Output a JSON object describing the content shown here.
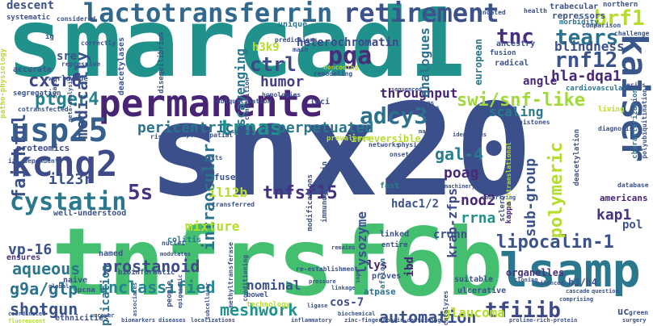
{
  "words": [
    {
      "text": "snx20",
      "color": "#3b4f8a"
    },
    {
      "text": "smarcad1",
      "color": "#21918c"
    },
    {
      "text": "tnfrsf6b",
      "color": "#44bf70"
    },
    {
      "text": "permanente",
      "color": "#482475"
    },
    {
      "text": "lsamp",
      "color": "#2a788e"
    },
    {
      "text": "lactotransferrin",
      "color": "#31688e"
    },
    {
      "text": "retirement",
      "color": "#3b528b"
    },
    {
      "text": "kaiser",
      "color": "#39568c"
    },
    {
      "text": "kcnq2",
      "color": "#3e4a89"
    },
    {
      "text": "usp25",
      "color": "#355f8d"
    },
    {
      "text": "adcy3",
      "color": "#2c728e"
    },
    {
      "text": "cystatin",
      "color": "#2a788e"
    },
    {
      "text": "lipocalin-1",
      "color": "#3b528b"
    },
    {
      "text": "brf1",
      "color": "#b5de2b"
    },
    {
      "text": "swi/snf-like",
      "color": "#a0da39"
    },
    {
      "text": "pga",
      "color": "#472d7b"
    },
    {
      "text": "tears",
      "color": "#2c728e"
    },
    {
      "text": "rnf12",
      "color": "#3b528b"
    },
    {
      "text": "tnc",
      "color": "#472d7b"
    },
    {
      "text": "ctrl",
      "color": "#3e4989"
    },
    {
      "text": "humor",
      "color": "#433e85"
    },
    {
      "text": "ptger4",
      "color": "#26828e"
    },
    {
      "text": "cxcr6",
      "color": "#3f4788"
    },
    {
      "text": "trnas",
      "color": "#21918c"
    },
    {
      "text": "perpetuated",
      "color": "#2a788e"
    },
    {
      "text": "pericentric",
      "color": "#2c728e"
    },
    {
      "text": "faithful",
      "color": "#3b528b"
    },
    {
      "text": "gal-4",
      "color": "#287d8e"
    },
    {
      "text": "poag",
      "color": "#482878"
    },
    {
      "text": "tnfsf15",
      "color": "#46337f"
    },
    {
      "text": "unclassified",
      "color": "#25858e"
    },
    {
      "text": "tfiiib",
      "color": "#3e4989"
    },
    {
      "text": "automation",
      "color": "#3b528b"
    },
    {
      "text": "meshwork",
      "color": "#21918c"
    },
    {
      "text": "shotgun",
      "color": "#3b528b"
    },
    {
      "text": "aqueous",
      "color": "#2a788e"
    },
    {
      "text": "g9a/glp",
      "color": "#2c728e"
    },
    {
      "text": "prostanoid",
      "color": "#3e4a89"
    },
    {
      "text": "vp-16",
      "color": "#3b528b"
    },
    {
      "text": "kap1",
      "color": "#46337f"
    },
    {
      "text": "sub-group",
      "color": "#3b528b"
    },
    {
      "text": "polymeric",
      "color": "#b5de2b"
    },
    {
      "text": "intraocular",
      "color": "#2c728e"
    },
    {
      "text": "lysozyme",
      "color": "#3b528b"
    },
    {
      "text": "krab-zfps",
      "color": "#3e4a89"
    },
    {
      "text": "rrna",
      "color": "#21918c"
    },
    {
      "text": "nod2",
      "color": "#482475"
    },
    {
      "text": "5s",
      "color": "#46337f"
    },
    {
      "text": "il12b",
      "color": "#b5de2b"
    },
    {
      "text": "il23r",
      "color": "#3b528b"
    },
    {
      "text": "hla-dqa1",
      "color": "#482878"
    },
    {
      "text": "scavenging",
      "color": "#2a788e"
    },
    {
      "text": "heterochromatin",
      "color": "#3e4989"
    },
    {
      "text": "blindness",
      "color": "#3b528b"
    },
    {
      "text": "throughput",
      "color": "#482475"
    },
    {
      "text": "medically",
      "color": "#3b528b"
    },
    {
      "text": "analogues",
      "color": "#2c728e"
    },
    {
      "text": "h3k9",
      "color": "#b5de2b"
    },
    {
      "text": "sre",
      "color": "#3b528b"
    },
    {
      "text": "descent",
      "color": "#3b528b"
    },
    {
      "text": "scaling",
      "color": "#2a788e"
    },
    {
      "text": "angle",
      "color": "#482878"
    },
    {
      "text": "mixture",
      "color": "#b5de2b"
    },
    {
      "text": "irreversible",
      "color": "#b5de2b"
    },
    {
      "text": "proteomics",
      "color": "#3e4a89"
    },
    {
      "text": "nominal",
      "color": "#3b528b"
    },
    {
      "text": "lys",
      "color": "#482475"
    },
    {
      "text": "crohn",
      "color": "#3b528b"
    },
    {
      "text": "pol",
      "color": "#3b528b"
    },
    {
      "text": "ibd",
      "color": "#482475"
    },
    {
      "text": "h3/h4",
      "color": "#3b528b"
    },
    {
      "text": "organelles",
      "color": "#46337f"
    },
    {
      "text": "glaucoma",
      "color": "#b5de2b"
    },
    {
      "text": "cos-7",
      "color": "#3b528b"
    },
    {
      "text": "uc",
      "color": "#3b528b"
    },
    {
      "text": "americans",
      "color": "#482475"
    },
    {
      "text": "hdac1/2",
      "color": "#3b528b"
    },
    {
      "text": "replication",
      "color": "#2c728e"
    },
    {
      "text": "fused",
      "color": "#3b528b"
    },
    {
      "text": "ensures",
      "color": "#46337f"
    },
    {
      "text": "naive",
      "color": "#3b528b"
    },
    {
      "text": "colitis",
      "color": "#2a788e"
    },
    {
      "text": "named",
      "color": "#3b528b"
    },
    {
      "text": "fast",
      "color": "#2a788e"
    },
    {
      "text": "atpase",
      "color": "#2c728e"
    },
    {
      "text": "proves",
      "color": "#3b528b"
    },
    {
      "text": "ulcerative",
      "color": "#3b528b"
    },
    {
      "text": "suitable",
      "color": "#3b528b"
    },
    {
      "text": "linked",
      "color": "#3b528b"
    },
    {
      "text": "entire",
      "color": "#3b528b"
    },
    {
      "text": "well-understood",
      "color": "#3b528b"
    },
    {
      "text": "european",
      "color": "#2a788e"
    },
    {
      "text": "cardiovascular",
      "color": "#2c728e"
    },
    {
      "text": "radical",
      "color": "#3b528b"
    },
    {
      "text": "fusion",
      "color": "#3b528b"
    },
    {
      "text": "ancestry",
      "color": "#3b528b"
    },
    {
      "text": "repressors",
      "color": "#3b528b"
    },
    {
      "text": "trabecular",
      "color": "#3b528b"
    },
    {
      "text": "morbidity",
      "color": "#2c728e"
    },
    {
      "text": "comparison",
      "color": "#3b528b"
    },
    {
      "text": "challenge",
      "color": "#3b528b"
    },
    {
      "text": "northern",
      "color": "#3b528b"
    },
    {
      "text": "health",
      "color": "#3b528b"
    },
    {
      "text": "uncated",
      "color": "#3b528b"
    },
    {
      "text": "predictions",
      "color": "#3b528b"
    },
    {
      "text": "main",
      "color": "#3b528b"
    },
    {
      "text": "noncoding",
      "color": "#b5de2b"
    },
    {
      "text": "remodeling",
      "color": "#3b528b"
    },
    {
      "text": "unique",
      "color": "#2a788e"
    },
    {
      "text": "correctly",
      "color": "#3b528b"
    },
    {
      "text": "disequilibrium",
      "color": "#3b528b"
    },
    {
      "text": "deacetylases",
      "color": "#3b528b"
    },
    {
      "text": "composition",
      "color": "#3b528b"
    },
    {
      "text": "homologies",
      "color": "#3b528b"
    },
    {
      "text": "ubiquitination",
      "color": "#3b528b"
    },
    {
      "text": "loci",
      "color": "#3b528b"
    },
    {
      "text": "undergoes",
      "color": "#3b528b"
    },
    {
      "text": "cdnas",
      "color": "#3b528b"
    },
    {
      "text": "sequenced",
      "color": "#3b528b"
    },
    {
      "text": "living",
      "color": "#b5de2b"
    },
    {
      "text": "histones",
      "color": "#3b528b"
    },
    {
      "text": "diagnosis",
      "color": "#3b528b"
    },
    {
      "text": "characterization",
      "color": "#2a788e"
    },
    {
      "text": "polyubiquitination",
      "color": "#3b528b"
    },
    {
      "text": "series",
      "color": "#3b528b"
    },
    {
      "text": "worldwide",
      "color": "#3b528b"
    },
    {
      "text": "segregation",
      "color": "#3b528b"
    },
    {
      "text": "accurate",
      "color": "#3b528b"
    },
    {
      "text": "patho-physiology",
      "color": "#b5de2b"
    },
    {
      "text": "ig",
      "color": "#3b528b"
    },
    {
      "text": "systematic",
      "color": "#3b528b"
    },
    {
      "text": "considered",
      "color": "#3b528b"
    },
    {
      "text": "repressive",
      "color": "#3b528b"
    },
    {
      "text": "meta-analysis",
      "color": "#3b528b"
    },
    {
      "text": "cotransfected",
      "color": "#3b528b"
    },
    {
      "text": "scans",
      "color": "#3b528b"
    },
    {
      "text": "iii-dependent",
      "color": "#3b528b"
    },
    {
      "text": "temporo-spatial",
      "color": "#3b528b"
    },
    {
      "text": "risk",
      "color": "#3b528b"
    },
    {
      "text": "summary",
      "color": "#3b528b"
    },
    {
      "text": "interacts",
      "color": "#3b528b"
    },
    {
      "text": "immunoglobulin",
      "color": "#3b528b"
    },
    {
      "text": "modifications",
      "color": "#3b528b"
    },
    {
      "text": "prevalence",
      "color": "#b5de2b"
    },
    {
      "text": "networks",
      "color": "#3b528b"
    },
    {
      "text": "physically",
      "color": "#3b528b"
    },
    {
      "text": "onset",
      "color": "#3b528b"
    },
    {
      "text": "marks",
      "color": "#3b528b"
    },
    {
      "text": "identities",
      "color": "#3b528b"
    },
    {
      "text": "machinery",
      "color": "#3b528b"
    },
    {
      "text": "underlying",
      "color": "#3b528b"
    },
    {
      "text": "sclerosis",
      "color": "#3b528b"
    },
    {
      "text": "posttranslational",
      "color": "#b5de2b"
    },
    {
      "text": "kappa",
      "color": "#482475"
    },
    {
      "text": "deacetylation",
      "color": "#3b528b"
    },
    {
      "text": "database",
      "color": "#3b528b"
    },
    {
      "text": "nuclei",
      "color": "#3b528b"
    },
    {
      "text": "transferred",
      "color": "#3b528b"
    },
    {
      "text": "modulates",
      "color": "#3b528b"
    },
    {
      "text": "methyltransferase",
      "color": "#3b528b"
    },
    {
      "text": "conditioning",
      "color": "#3b528b"
    },
    {
      "text": "bioinformatic",
      "color": "#3b528b"
    },
    {
      "text": "re-establishment",
      "color": "#3b528b"
    },
    {
      "text": "remains",
      "color": "#3b528b"
    },
    {
      "text": "snps",
      "color": "#3b528b"
    },
    {
      "text": "african",
      "color": "#2a788e"
    },
    {
      "text": "pressure",
      "color": "#3b528b"
    },
    {
      "text": "linkage",
      "color": "#3b528b"
    },
    {
      "text": "cloning",
      "color": "#3b528b"
    },
    {
      "text": "silenced",
      "color": "#3b528b"
    },
    {
      "text": "cascade",
      "color": "#3b528b"
    },
    {
      "text": "question",
      "color": "#3b528b"
    },
    {
      "text": "comprising",
      "color": "#3b528b"
    },
    {
      "text": "catalyzes",
      "color": "#3b528b"
    },
    {
      "text": "global",
      "color": "#3b528b"
    },
    {
      "text": "bowel",
      "color": "#3b528b"
    },
    {
      "text": "technology",
      "color": "#b5de2b"
    },
    {
      "text": "pcna",
      "color": "#3b528b"
    },
    {
      "text": "associates",
      "color": "#3b528b"
    },
    {
      "text": "people",
      "color": "#3b528b"
    },
    {
      "text": "epigenetic",
      "color": "#3b528b"
    },
    {
      "text": "coordinated",
      "color": "#3b528b"
    },
    {
      "text": "fluorescent",
      "color": "#b5de2b"
    },
    {
      "text": "ethnicities",
      "color": "#3b528b"
    },
    {
      "text": "uncover",
      "color": "#3b528b"
    },
    {
      "text": "biomarkers",
      "color": "#3b528b"
    },
    {
      "text": "diseases",
      "color": "#3b528b"
    },
    {
      "text": "localizations",
      "color": "#3b528b"
    },
    {
      "text": "subcellular",
      "color": "#3b528b"
    },
    {
      "text": "inflammatory",
      "color": "#3b528b"
    },
    {
      "text": "ligase",
      "color": "#3b528b"
    },
    {
      "text": "biochemical",
      "color": "#3b528b"
    },
    {
      "text": "zinc-finger",
      "color": "#3b528b"
    },
    {
      "text": "domain-containing",
      "color": "#3b528b"
    },
    {
      "text": "proline-rich-protein",
      "color": "#3b528b"
    },
    {
      "text": "green",
      "color": "#3b528b"
    },
    {
      "text": "surgery",
      "color": "#3b528b"
    }
  ]
}
